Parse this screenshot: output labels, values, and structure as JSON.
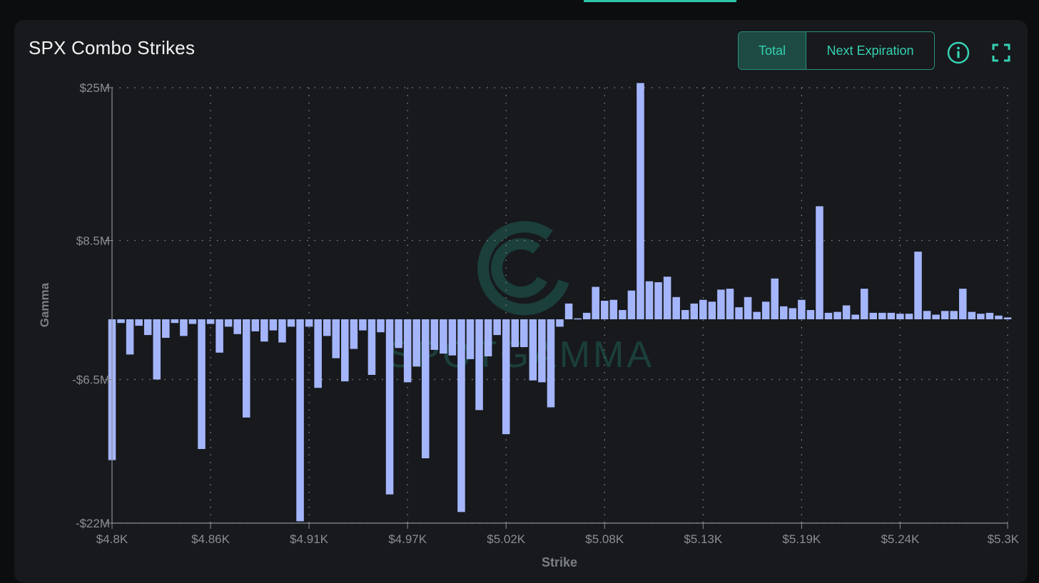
{
  "header": {
    "title": "SPX Combo Strikes",
    "toggle": {
      "total_label": "Total",
      "next_label": "Next Expiration",
      "active": "Total"
    }
  },
  "icons": {
    "info": "info-icon",
    "expand": "expand-icon"
  },
  "watermark": "SPOTGAMMA",
  "colors": {
    "bar": "#a4b5fb",
    "accent": "#36d1b3",
    "background": "#17191c"
  },
  "chart_data": {
    "type": "bar",
    "xlabel": "Strike",
    "ylabel": "Gamma",
    "ylim": [
      -22,
      25
    ],
    "y_unit": "M",
    "xlim": [
      4800,
      5300
    ],
    "y_ticks": [
      {
        "value": 25,
        "label": "$25M"
      },
      {
        "value": 8.5,
        "label": "$8.5M"
      },
      {
        "value": -6.5,
        "label": "-$6.5M"
      },
      {
        "value": -22,
        "label": "-$22M"
      }
    ],
    "x_ticks": [
      {
        "value": 4800,
        "label": "$4.8K"
      },
      {
        "value": 4855,
        "label": "$4.86K"
      },
      {
        "value": 4910,
        "label": "$4.91K"
      },
      {
        "value": 4965,
        "label": "$4.97K"
      },
      {
        "value": 5020,
        "label": "$5.02K"
      },
      {
        "value": 5075,
        "label": "$5.08K"
      },
      {
        "value": 5130,
        "label": "$5.13K"
      },
      {
        "value": 5185,
        "label": "$5.19K"
      },
      {
        "value": 5240,
        "label": "$5.24K"
      },
      {
        "value": 5300,
        "label": "$5.3K"
      }
    ],
    "strikes": [
      4800,
      4805,
      4810,
      4815,
      4820,
      4825,
      4830,
      4835,
      4840,
      4845,
      4850,
      4855,
      4860,
      4865,
      4870,
      4875,
      4880,
      4885,
      4890,
      4895,
      4900,
      4905,
      4910,
      4915,
      4920,
      4925,
      4930,
      4935,
      4940,
      4945,
      4950,
      4955,
      4960,
      4965,
      4970,
      4975,
      4980,
      4985,
      4990,
      4995,
      5000,
      5005,
      5010,
      5015,
      5020,
      5025,
      5030,
      5035,
      5040,
      5045,
      5050,
      5055,
      5060,
      5065,
      5070,
      5075,
      5080,
      5085,
      5090,
      5095,
      5100,
      5105,
      5110,
      5115,
      5120,
      5125,
      5130,
      5135,
      5140,
      5145,
      5150,
      5155,
      5160,
      5165,
      5170,
      5175,
      5180,
      5185,
      5190,
      5195,
      5200,
      5205,
      5210,
      5215,
      5220,
      5225,
      5230,
      5235,
      5240,
      5245,
      5250,
      5255,
      5260,
      5265,
      5270,
      5275,
      5280,
      5285,
      5290,
      5295,
      5300
    ],
    "values": [
      -15.2,
      -0.4,
      -3.8,
      -0.7,
      -1.7,
      -6.5,
      -2.0,
      -0.4,
      -1.8,
      -0.5,
      -14.0,
      -0.5,
      -3.6,
      -0.8,
      -1.6,
      -10.6,
      -1.3,
      -2.4,
      -1.2,
      -2.5,
      -0.8,
      -21.8,
      -0.8,
      -7.4,
      -1.8,
      -4.2,
      -6.7,
      -3.2,
      -1.2,
      -6.0,
      -1.4,
      -18.9,
      -3.1,
      -6.8,
      -5.1,
      -15.0,
      -3.3,
      -3.7,
      -3.9,
      -20.8,
      -4.3,
      -9.8,
      -4.0,
      -1.7,
      -12.4,
      -3.0,
      -3.0,
      -6.6,
      -6.8,
      -9.5,
      -0.8,
      1.7,
      0.1,
      0.7,
      3.5,
      2.0,
      2.1,
      1.0,
      3.1,
      25.5,
      4.1,
      4.0,
      4.6,
      2.4,
      1.0,
      1.7,
      2.1,
      1.9,
      3.2,
      3.3,
      1.3,
      2.4,
      0.8,
      1.9,
      4.4,
      1.4,
      1.2,
      2.1,
      1.0,
      12.2,
      0.7,
      0.8,
      1.5,
      0.5,
      3.3,
      0.7,
      0.7,
      0.7,
      0.6,
      0.6,
      7.3,
      0.9,
      0.5,
      0.9,
      0.9,
      3.3,
      0.8,
      0.6,
      0.7,
      0.4,
      0.2
    ]
  }
}
